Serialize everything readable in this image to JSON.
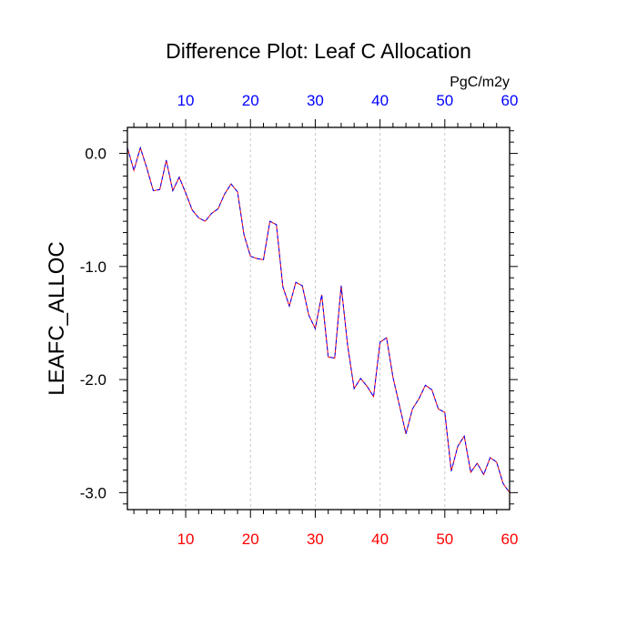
{
  "chart_data": {
    "type": "line",
    "title": "Difference Plot: Leaf C Allocation",
    "ylabel": "LEAFC_ALLOC",
    "top_axis_unit": "PgC/m2y",
    "xlim": [
      1,
      60
    ],
    "ylim": [
      -3.15,
      0.23
    ],
    "x_major_ticks": [
      10,
      20,
      30,
      40,
      50,
      60
    ],
    "y_major_ticks": [
      0.0,
      -1.0,
      -2.0,
      -3.0
    ],
    "y_tick_labels": [
      "0.0",
      "-1.0",
      "-2.0",
      "-3.0"
    ],
    "grid": "vertical dashed at major x ticks",
    "colors": {
      "bottom_ticks": "#ff0000",
      "top_ticks": "#0000ff",
      "series_a": "#ff0000",
      "series_b": "#0000ff",
      "text": "#000000"
    },
    "series": [
      {
        "x": [
          1,
          2,
          3,
          4,
          5,
          6,
          7,
          8,
          9,
          10,
          11,
          12,
          13,
          14,
          15,
          16,
          17,
          18,
          19,
          20,
          21,
          22,
          23,
          24,
          25,
          26,
          27,
          28,
          29,
          30,
          31,
          32,
          33,
          34,
          35,
          36,
          37,
          38,
          39,
          40,
          41,
          42,
          43,
          44,
          45,
          46,
          47,
          48,
          49,
          50,
          51,
          52,
          53,
          54,
          55,
          56,
          57,
          58,
          59,
          60
        ],
        "values": [
          0.05,
          -0.15,
          0.05,
          -0.13,
          -0.33,
          -0.32,
          -0.06,
          -0.33,
          -0.21,
          -0.35,
          -0.5,
          -0.57,
          -0.6,
          -0.53,
          -0.49,
          -0.36,
          -0.27,
          -0.34,
          -0.72,
          -0.91,
          -0.93,
          -0.94,
          -0.6,
          -0.63,
          -1.18,
          -1.35,
          -1.14,
          -1.17,
          -1.43,
          -1.55,
          -1.25,
          -1.8,
          -1.81,
          -1.17,
          -1.7,
          -2.08,
          -1.99,
          -2.06,
          -2.15,
          -1.67,
          -1.63,
          -1.98,
          -2.23,
          -2.48,
          -2.26,
          -2.17,
          -2.05,
          -2.09,
          -2.26,
          -2.29,
          -2.81,
          -2.59,
          -2.5,
          -2.82,
          -2.74,
          -2.84,
          -2.69,
          -2.73,
          -2.92,
          -3.0
        ]
      }
    ]
  }
}
